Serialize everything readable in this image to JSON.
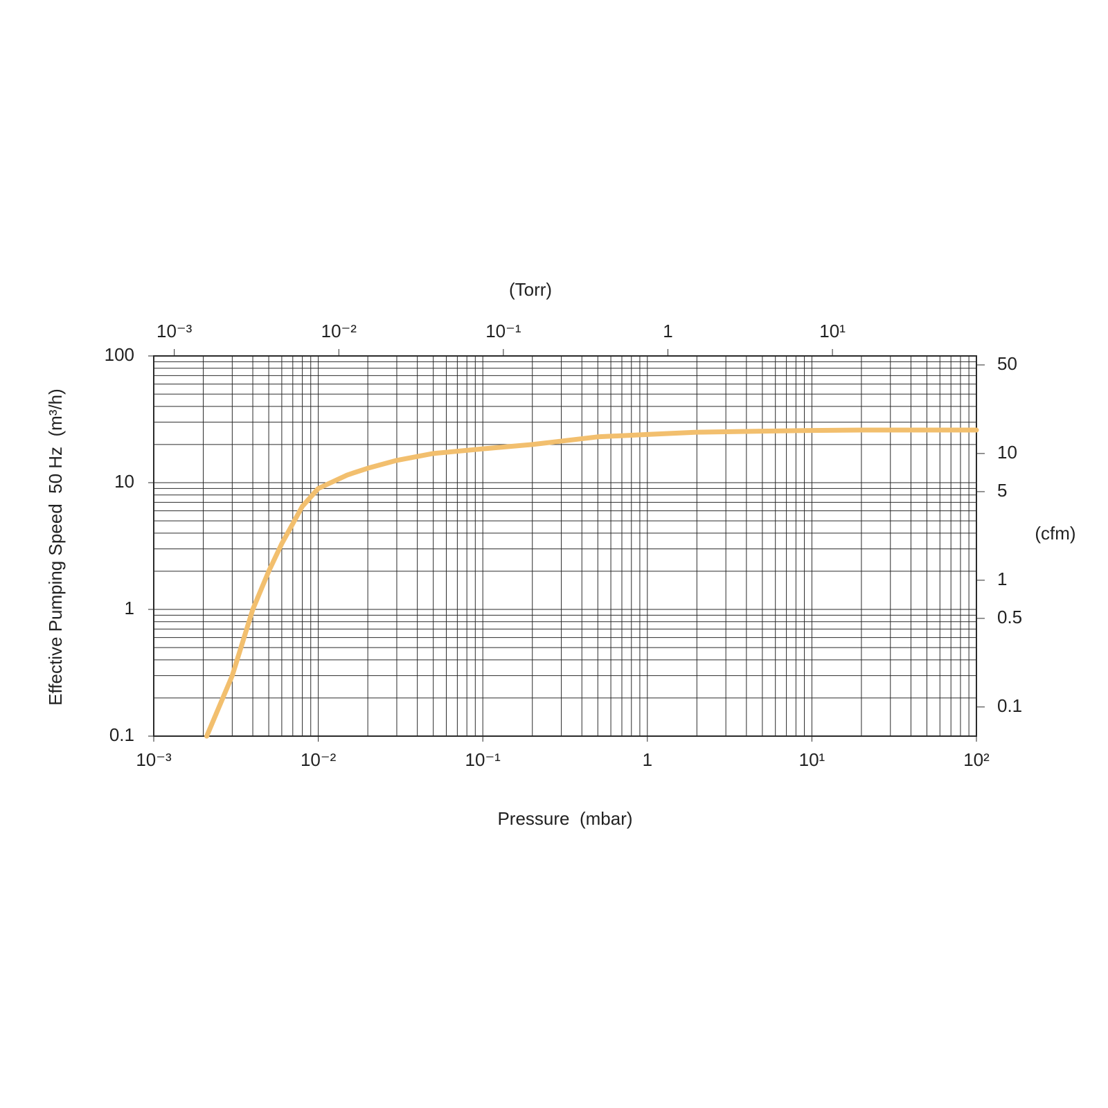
{
  "chart_data": {
    "type": "line",
    "x_label": "Pressure  (mbar)",
    "y_label": "Effective Pumping Speed  50 Hz  (m³/h)",
    "x2_label": "(Torr)",
    "y2_label": "(cfm)",
    "x_scale": "log",
    "y_scale": "log",
    "grid": true,
    "minor_grid": true,
    "color": "#f2bf6e",
    "xlim": [
      0.001,
      100
    ],
    "xticks": [
      {
        "value": 0.001,
        "label": "10⁻³"
      },
      {
        "value": 0.01,
        "label": "10⁻²"
      },
      {
        "value": 0.1,
        "label": "10⁻¹"
      },
      1,
      {
        "value": 10,
        "label": "10¹"
      },
      {
        "value": 100,
        "label": "10²"
      }
    ],
    "ylim": [
      0.1,
      100
    ],
    "yticks": [
      0.1,
      1,
      10,
      100
    ],
    "x2lim": [
      0.00075006,
      75.006
    ],
    "x2ticks": [
      {
        "value": 0.001,
        "label": "10⁻³"
      },
      {
        "value": 0.01,
        "label": "10⁻²"
      },
      {
        "value": 0.1,
        "label": "10⁻¹"
      },
      1,
      {
        "value": 10,
        "label": "10¹"
      }
    ],
    "y2lim": [
      0.05886,
      58.86
    ],
    "y2ticks": [
      0.1,
      0.5,
      1,
      5,
      10,
      50
    ],
    "x": [
      0.0021,
      0.003,
      0.004,
      0.005,
      0.006,
      0.008,
      0.01,
      0.015,
      0.02,
      0.03,
      0.05,
      0.1,
      0.2,
      0.5,
      1,
      2,
      5,
      10,
      20,
      100
    ],
    "values": [
      0.1,
      0.3,
      1.0,
      2.0,
      3.3,
      6.5,
      9,
      11.5,
      13,
      15,
      17,
      18.5,
      20,
      23,
      24,
      25,
      25.5,
      25.8,
      26,
      26
    ]
  }
}
